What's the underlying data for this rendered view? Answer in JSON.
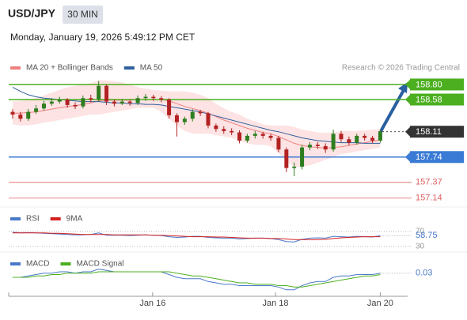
{
  "header": {
    "symbol": "USD/JPY",
    "timeframe": "30 MIN",
    "timestamp": "Monday, January 19, 2026 5:49:12 PM CET"
  },
  "chart_data": [
    {
      "type": "candlestick",
      "credit": "Research © 2026 Trading Central",
      "xlim": [
        -0.5,
        50.5
      ],
      "ylim": [
        157.01,
        158.88
      ],
      "open": [
        158.4,
        158.36,
        158.3,
        158.4,
        158.45,
        158.52,
        158.55,
        158.58,
        158.5,
        158.48,
        158.6,
        158.58,
        158.78,
        158.55,
        158.52,
        158.55,
        158.53,
        158.6,
        158.62,
        158.6,
        158.58,
        158.35,
        158.25,
        158.3,
        158.4,
        158.38,
        158.2,
        158.15,
        158.12,
        158.1,
        157.98,
        158.05,
        158.08,
        158.05,
        158.02,
        157.85,
        157.58,
        157.6,
        157.88,
        157.92,
        157.9,
        157.85,
        158.08,
        158.0,
        157.95,
        158.05,
        158.02,
        157.98
      ],
      "high": [
        158.44,
        158.4,
        158.44,
        158.5,
        158.56,
        158.6,
        158.62,
        158.6,
        158.54,
        158.64,
        158.65,
        158.85,
        158.8,
        158.58,
        158.59,
        158.58,
        158.64,
        158.66,
        158.65,
        158.63,
        158.6,
        158.38,
        158.33,
        158.44,
        158.43,
        158.4,
        158.23,
        158.19,
        158.16,
        158.13,
        158.08,
        158.12,
        158.11,
        158.08,
        158.05,
        157.88,
        157.66,
        157.92,
        157.96,
        157.96,
        157.94,
        158.14,
        158.12,
        158.04,
        158.08,
        158.08,
        158.05,
        158.14
      ],
      "low": [
        158.3,
        158.26,
        158.27,
        158.37,
        158.42,
        158.49,
        158.52,
        158.46,
        158.44,
        158.45,
        158.54,
        158.55,
        158.5,
        158.48,
        158.5,
        158.49,
        158.5,
        158.56,
        158.56,
        158.54,
        158.3,
        158.04,
        158.21,
        158.26,
        158.34,
        158.16,
        158.11,
        158.08,
        158.06,
        157.94,
        157.95,
        158.01,
        158.01,
        157.98,
        157.81,
        157.52,
        157.46,
        157.56,
        157.84,
        157.86,
        157.8,
        157.82,
        157.96,
        157.91,
        157.92,
        157.98,
        157.94,
        157.95
      ],
      "close": [
        158.36,
        158.3,
        158.4,
        158.45,
        158.52,
        158.55,
        158.58,
        158.5,
        158.48,
        158.6,
        158.58,
        158.78,
        158.55,
        158.52,
        158.55,
        158.53,
        158.6,
        158.62,
        158.6,
        158.58,
        158.35,
        158.25,
        158.3,
        158.4,
        158.38,
        158.2,
        158.15,
        158.12,
        158.1,
        157.98,
        158.05,
        158.08,
        158.05,
        158.02,
        157.85,
        157.58,
        157.6,
        157.88,
        157.92,
        157.9,
        157.85,
        158.08,
        158.0,
        157.95,
        158.05,
        158.02,
        157.98,
        158.11
      ],
      "up_color": "#2e7d1f",
      "down_color": "#b22222",
      "series": [
        {
          "name": "MA 20 + Bollinger Bands",
          "color": "#ef8080",
          "band_color": "#fddede",
          "values": [
            158.38,
            158.38,
            158.39,
            158.4,
            158.42,
            158.44,
            158.46,
            158.48,
            158.49,
            158.51,
            158.53,
            158.56,
            158.57,
            158.57,
            158.57,
            158.57,
            158.58,
            158.58,
            158.58,
            158.58,
            158.56,
            158.52,
            158.48,
            158.45,
            158.42,
            158.38,
            158.33,
            158.28,
            158.24,
            158.2,
            158.16,
            158.13,
            158.1,
            158.08,
            158.04,
            157.99,
            157.94,
            157.91,
            157.89,
            157.88,
            157.87,
            157.88,
            157.89,
            157.91,
            157.93,
            157.95,
            157.97,
            157.99
          ],
          "upper": [
            158.55,
            158.56,
            158.58,
            158.6,
            158.64,
            158.68,
            158.72,
            158.76,
            158.78,
            158.8,
            158.82,
            158.86,
            158.86,
            158.85,
            158.83,
            158.8,
            158.76,
            158.74,
            158.72,
            158.71,
            158.7,
            158.7,
            158.7,
            158.68,
            158.65,
            158.6,
            158.52,
            158.45,
            158.4,
            158.36,
            158.3,
            158.26,
            158.22,
            158.2,
            158.2,
            158.2,
            158.18,
            158.14,
            158.12,
            158.1,
            158.09,
            158.1,
            158.12,
            158.12,
            158.12,
            158.13,
            158.14,
            158.15
          ],
          "lower": [
            158.22,
            158.2,
            158.2,
            158.22,
            158.24,
            158.26,
            158.28,
            158.3,
            158.32,
            158.34,
            158.36,
            158.36,
            158.38,
            158.4,
            158.42,
            158.44,
            158.46,
            158.46,
            158.46,
            158.4,
            158.3,
            158.2,
            158.12,
            158.08,
            158.08,
            158.08,
            158.06,
            158.04,
            158.02,
            157.98,
            157.94,
            157.92,
            157.92,
            157.9,
            157.8,
            157.68,
            157.6,
            157.6,
            157.62,
            157.66,
            157.7,
            157.74,
            157.78,
            157.8,
            157.82,
            157.84,
            157.86,
            157.88
          ]
        },
        {
          "name": "MA 50",
          "color": "#2f5f9e",
          "values": [
            158.76,
            158.7,
            158.65,
            158.62,
            158.6,
            158.59,
            158.58,
            158.57,
            158.56,
            158.55,
            158.55,
            158.55,
            158.54,
            158.53,
            158.53,
            158.52,
            158.52,
            158.51,
            158.51,
            158.5,
            158.48,
            158.46,
            158.44,
            158.42,
            158.4,
            158.37,
            158.34,
            158.31,
            158.28,
            158.25,
            158.22,
            158.19,
            158.16,
            158.13,
            158.11,
            158.08,
            158.05,
            158.02,
            158.0,
            157.98,
            157.97,
            157.96,
            157.95,
            157.95,
            157.95,
            157.94,
            157.94,
            157.94
          ]
        }
      ],
      "levels": [
        {
          "value": 158.8,
          "label": "158.80",
          "color": "#4caf20",
          "style": "box"
        },
        {
          "value": 158.58,
          "label": "158.58",
          "color": "#4caf20",
          "style": "box"
        },
        {
          "value": 158.11,
          "label": "158.11",
          "color": "#333333",
          "style": "dotted"
        },
        {
          "value": 157.74,
          "label": "157.74",
          "color": "#3a7bd5",
          "style": "box"
        },
        {
          "value": 157.37,
          "label": "157.37",
          "color": "#e06060",
          "style": "text"
        },
        {
          "value": 157.14,
          "label": "157.14",
          "color": "#e06060",
          "style": "text"
        }
      ]
    },
    {
      "type": "line",
      "xlim": [
        -0.5,
        50.5
      ],
      "ylim": [
        17,
        91
      ],
      "yticks": [
        30,
        70
      ],
      "series": [
        {
          "name": "RSI",
          "color": "#4a78c8",
          "values": [
            68,
            66,
            67,
            66,
            65,
            64,
            63,
            62,
            61,
            61,
            62,
            66,
            60,
            60,
            60,
            59,
            60,
            61,
            60,
            59,
            56,
            54,
            55,
            57,
            57,
            54,
            53,
            52,
            52,
            50,
            51,
            52,
            52,
            51,
            48,
            43,
            42,
            49,
            52,
            53,
            52,
            57,
            56,
            55,
            57,
            56,
            55,
            58.75
          ]
        },
        {
          "name": "9MA",
          "color": "#d42020",
          "values": [
            66,
            66,
            66,
            66,
            66,
            65,
            65,
            64,
            63,
            62,
            62,
            62,
            62,
            61,
            61,
            61,
            61,
            61,
            60,
            60,
            59,
            58,
            57,
            56,
            56,
            56,
            55,
            55,
            54,
            53,
            52,
            52,
            52,
            51,
            51,
            50,
            48,
            48,
            48,
            48,
            49,
            51,
            53,
            54,
            55,
            56,
            56,
            56
          ]
        }
      ]
    },
    {
      "type": "line",
      "xlim": [
        -0.5,
        50.5
      ],
      "ylim": [
        -0.12,
        0.12
      ],
      "xticks": [
        {
          "value": 17.9,
          "label": "Jan 16"
        },
        {
          "value": 33.6,
          "label": "Jan 18"
        },
        {
          "value": 47.0,
          "label": "Jan 20"
        }
      ],
      "series": [
        {
          "name": "MACD",
          "color": "#4a78c8",
          "values": [
            0.0,
            0.0,
            0.01,
            0.02,
            0.03,
            0.03,
            0.04,
            0.04,
            0.03,
            0.04,
            0.04,
            0.06,
            0.05,
            0.04,
            0.04,
            0.04,
            0.04,
            0.04,
            0.04,
            0.04,
            0.02,
            0.0,
            -0.01,
            -0.01,
            -0.01,
            -0.03,
            -0.04,
            -0.05,
            -0.05,
            -0.06,
            -0.06,
            -0.06,
            -0.06,
            -0.06,
            -0.07,
            -0.09,
            -0.09,
            -0.06,
            -0.04,
            -0.03,
            -0.03,
            0.0,
            0.01,
            0.01,
            0.02,
            0.02,
            0.02,
            0.03
          ]
        },
        {
          "name": "MACD Signal",
          "color": "#4caf20",
          "values": [
            0.0,
            0.0,
            0.0,
            0.01,
            0.01,
            0.02,
            0.02,
            0.03,
            0.03,
            0.03,
            0.03,
            0.04,
            0.04,
            0.04,
            0.04,
            0.04,
            0.04,
            0.04,
            0.04,
            0.04,
            0.04,
            0.03,
            0.02,
            0.01,
            0.01,
            0.0,
            -0.01,
            -0.02,
            -0.03,
            -0.04,
            -0.04,
            -0.05,
            -0.05,
            -0.05,
            -0.06,
            -0.06,
            -0.07,
            -0.07,
            -0.06,
            -0.05,
            -0.04,
            -0.03,
            -0.02,
            -0.01,
            0.0,
            0.01,
            0.01,
            0.02
          ]
        }
      ]
    }
  ]
}
